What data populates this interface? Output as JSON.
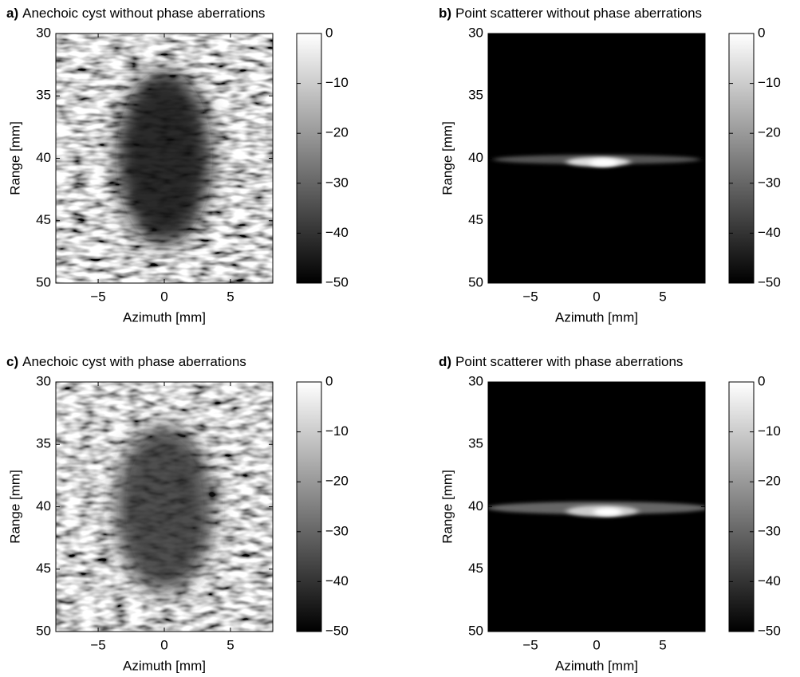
{
  "chart_data": [
    {
      "type": "image",
      "label": "a)",
      "title": "Anechoic cyst without phase aberrations",
      "xlabel": "Azimuth [mm]",
      "ylabel": "Range [mm]",
      "xlim": [
        -8.2,
        8.2
      ],
      "ylim": [
        30,
        50
      ],
      "yreverse": true,
      "xticks": [
        {
          "value": -5,
          "label": "−5"
        },
        0,
        5
      ],
      "yticks": [
        30,
        35,
        40,
        45,
        50
      ],
      "colorbar": {
        "lim": [
          -50,
          0
        ],
        "ticks": [
          0,
          {
            "value": -10,
            "label": "−10"
          },
          {
            "value": -20,
            "label": "−20"
          },
          {
            "value": -30,
            "label": "−30"
          },
          {
            "value": -40,
            "label": "−40"
          },
          {
            "value": -50,
            "label": "−50"
          }
        ]
      }
    },
    {
      "type": "image",
      "label": "b)",
      "title": "Point scatterer without phase aberrations",
      "xlabel": "Azimuth [mm]",
      "ylabel": "Range [mm]",
      "xlim": [
        -8.2,
        8.2
      ],
      "ylim": [
        30,
        50
      ],
      "yreverse": true,
      "xticks": [
        {
          "value": -5,
          "label": "−5"
        },
        0,
        5
      ],
      "yticks": [
        30,
        35,
        40,
        45,
        50
      ],
      "colorbar": {
        "lim": [
          -50,
          0
        ],
        "ticks": [
          0,
          {
            "value": -10,
            "label": "−10"
          },
          {
            "value": -20,
            "label": "−20"
          },
          {
            "value": -30,
            "label": "−30"
          },
          {
            "value": -40,
            "label": "−40"
          },
          {
            "value": -50,
            "label": "−50"
          }
        ]
      }
    },
    {
      "type": "image",
      "label": "c)",
      "title": "Anechoic cyst with phase aberrations",
      "xlabel": "Azimuth [mm]",
      "ylabel": "Range [mm]",
      "xlim": [
        -8.2,
        8.2
      ],
      "ylim": [
        30,
        50
      ],
      "yreverse": true,
      "xticks": [
        {
          "value": -5,
          "label": "−5"
        },
        0,
        5
      ],
      "yticks": [
        30,
        35,
        40,
        45,
        50
      ],
      "colorbar": {
        "lim": [
          -50,
          0
        ],
        "ticks": [
          0,
          {
            "value": -10,
            "label": "−10"
          },
          {
            "value": -20,
            "label": "−20"
          },
          {
            "value": -30,
            "label": "−30"
          },
          {
            "value": -40,
            "label": "−40"
          },
          {
            "value": -50,
            "label": "−50"
          }
        ]
      }
    },
    {
      "type": "image",
      "label": "d)",
      "title": "Point scatterer with phase aberrations",
      "xlabel": "Azimuth [mm]",
      "ylabel": "Range [mm]",
      "xlim": [
        -8.2,
        8.2
      ],
      "ylim": [
        30,
        50
      ],
      "yreverse": true,
      "xticks": [
        {
          "value": -5,
          "label": "−5"
        },
        0,
        5
      ],
      "yticks": [
        30,
        35,
        40,
        45,
        50
      ],
      "colorbar": {
        "lim": [
          -50,
          0
        ],
        "ticks": [
          0,
          {
            "value": -10,
            "label": "−10"
          },
          {
            "value": -20,
            "label": "−20"
          },
          {
            "value": -30,
            "label": "−30"
          },
          {
            "value": -40,
            "label": "−40"
          },
          {
            "value": -50,
            "label": "−50"
          }
        ]
      }
    }
  ]
}
